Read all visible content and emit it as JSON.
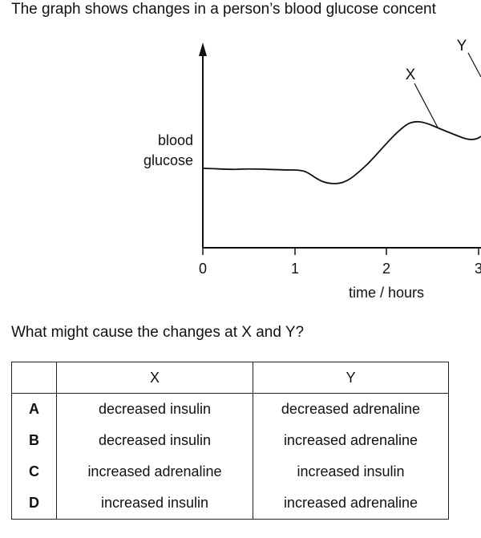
{
  "intro_text": "The graph shows changes in a person’s blood glucose concent",
  "graph": {
    "y_axis_label_line1": "blood",
    "y_axis_label_line2": "glucose",
    "x_axis_label": "time / hours",
    "x_ticks": [
      "0",
      "1",
      "2",
      "3"
    ],
    "point_labels": {
      "x": "X",
      "y": "Y"
    }
  },
  "question": "What might cause the changes at X and Y?",
  "table": {
    "headers": {
      "letter": "",
      "x": "X",
      "y": "Y"
    },
    "rows": [
      {
        "letter": "A",
        "x": "decreased insulin",
        "y": "decreased adrenaline"
      },
      {
        "letter": "B",
        "x": "decreased insulin",
        "y": "increased adrenaline"
      },
      {
        "letter": "C",
        "x": "increased adrenaline",
        "y": "increased insulin"
      },
      {
        "letter": "D",
        "x": "increased insulin",
        "y": "increased adrenaline"
      }
    ]
  }
}
